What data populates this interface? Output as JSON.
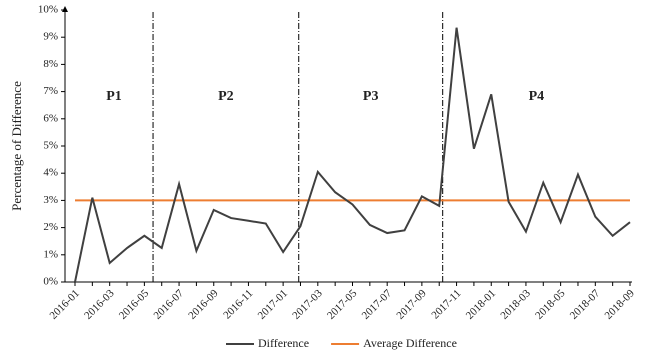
{
  "chart_data": {
    "type": "line",
    "y_label": "Percentage of Difference",
    "categories": [
      "2016-01",
      null,
      "2016-03",
      null,
      "2016-05",
      null,
      "2016-07",
      null,
      "2016-09",
      null,
      "2016-11",
      null,
      "2017-01",
      null,
      "2017-03",
      null,
      "2017-05",
      null,
      "2017-07",
      null,
      "2017-09",
      null,
      "2017-11",
      null,
      "2018-01",
      null,
      "2018-03",
      null,
      "2018-05",
      null,
      "2018-07",
      null,
      "2018-09"
    ],
    "series": [
      {
        "name": "Difference",
        "color": "#404040",
        "values": [
          0,
          3.1,
          0.7,
          1.25,
          1.7,
          1.25,
          3.6,
          1.15,
          2.65,
          2.35,
          2.25,
          2.15,
          1.1,
          2.05,
          4.05,
          3.3,
          2.85,
          2.1,
          1.8,
          1.9,
          3.15,
          2.8,
          9.35,
          4.9,
          6.9,
          2.95,
          1.85,
          3.65,
          2.2,
          3.95,
          2.4,
          1.7,
          2.2
        ]
      }
    ],
    "reference_line": {
      "name": "Average Difference",
      "color": "#ed7d31",
      "value": 3
    },
    "periods": [
      "P1",
      "P2",
      "P3",
      "P4"
    ],
    "dividers": [
      4.5,
      12.9,
      21.2
    ],
    "ylim": [
      0,
      10
    ],
    "yticks": [
      {
        "value": 0,
        "label": "0%"
      },
      {
        "value": 1,
        "label": "1%"
      },
      {
        "value": 2,
        "label": "2%"
      },
      {
        "value": 3,
        "label": "3%"
      },
      {
        "value": 4,
        "label": "4%"
      },
      {
        "value": 5,
        "label": "5%"
      },
      {
        "value": 6,
        "label": "6%"
      },
      {
        "value": 7,
        "label": "7%"
      },
      {
        "value": 8,
        "label": "8%"
      },
      {
        "value": 9,
        "label": "9%"
      },
      {
        "value": 10,
        "label": "10%"
      }
    ],
    "legend": "bottom"
  }
}
